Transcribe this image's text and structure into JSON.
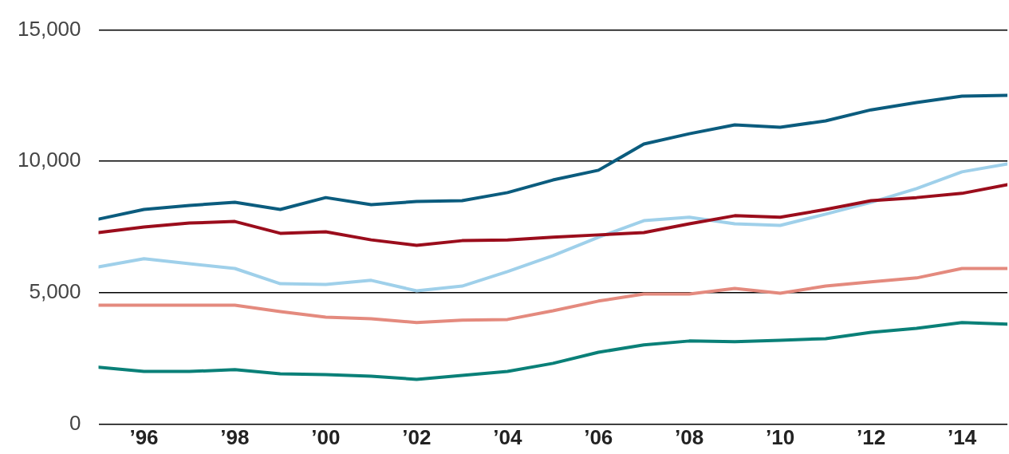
{
  "chart_data": {
    "type": "line",
    "x": [
      1995,
      1996,
      1997,
      1998,
      1999,
      2000,
      2001,
      2002,
      2003,
      2004,
      2005,
      2006,
      2007,
      2008,
      2009,
      2010,
      2011,
      2012,
      2013,
      2014,
      2015
    ],
    "series": [
      {
        "color": "#0b5c7e",
        "values": [
          7800,
          8170,
          8320,
          8440,
          8170,
          8620,
          8350,
          8470,
          8500,
          8810,
          9290,
          9660,
          10660,
          11050,
          11390,
          11300,
          11540,
          11960,
          12240,
          12480,
          12510
        ]
      },
      {
        "color": "#9b0d1c",
        "values": [
          7290,
          7500,
          7650,
          7710,
          7260,
          7320,
          7010,
          6800,
          6980,
          7010,
          7110,
          7200,
          7290,
          7620,
          7930,
          7870,
          8170,
          8500,
          8620,
          8780,
          9110
        ]
      },
      {
        "color": "#9fd0ea",
        "values": [
          5980,
          6290,
          6100,
          5920,
          5340,
          5310,
          5470,
          5070,
          5250,
          5800,
          6410,
          7110,
          7740,
          7870,
          7620,
          7560,
          7990,
          8440,
          8960,
          9600,
          9900
        ]
      },
      {
        "color": "#e48a7e",
        "values": [
          4520,
          4520,
          4520,
          4520,
          4280,
          4070,
          4010,
          3860,
          3950,
          3980,
          4310,
          4680,
          4950,
          4950,
          5160,
          4980,
          5250,
          5410,
          5560,
          5920,
          5920
        ]
      },
      {
        "color": "#0a8078",
        "values": [
          2160,
          2000,
          2000,
          2070,
          1910,
          1880,
          1820,
          1700,
          1850,
          2000,
          2310,
          2730,
          3010,
          3160,
          3130,
          3190,
          3250,
          3490,
          3640,
          3860,
          3800
        ]
      }
    ],
    "xlim": [
      1995,
      2015
    ],
    "xticks": [
      {
        "value": 1996,
        "label": "’96"
      },
      {
        "value": 1998,
        "label": "’98"
      },
      {
        "value": 2000,
        "label": "’00"
      },
      {
        "value": 2002,
        "label": "’02"
      },
      {
        "value": 2004,
        "label": "’04"
      },
      {
        "value": 2006,
        "label": "’06"
      },
      {
        "value": 2008,
        "label": "’08"
      },
      {
        "value": 2010,
        "label": "’10"
      },
      {
        "value": 2012,
        "label": "’12"
      },
      {
        "value": 2014,
        "label": "’14"
      }
    ],
    "ylim": [
      0,
      15000
    ],
    "yticks": [
      {
        "value": 0,
        "label": "0"
      },
      {
        "value": 5000,
        "label": "5,000"
      },
      {
        "value": 10000,
        "label": "10,000"
      },
      {
        "value": 15000,
        "label": "15,000"
      }
    ],
    "grid": "y",
    "legend": false,
    "marker": "none",
    "line_style": "solid"
  }
}
